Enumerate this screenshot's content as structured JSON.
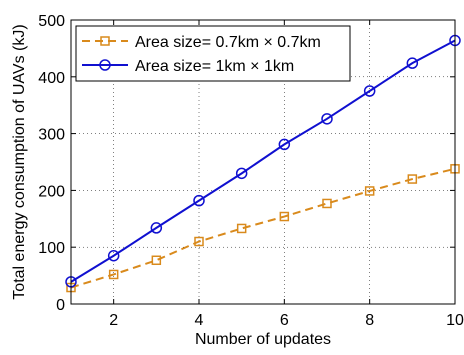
{
  "chart_data": {
    "type": "line",
    "title": "",
    "xlabel": "Number of updates",
    "ylabel": "Total energy consumption of UAVs (kJ)",
    "xlim": [
      1,
      10
    ],
    "ylim": [
      0,
      500
    ],
    "xticks": [
      2,
      4,
      6,
      8,
      10
    ],
    "yticks": [
      0,
      100,
      200,
      300,
      400,
      500
    ],
    "grid": true,
    "legend_position": "top-left",
    "x": [
      1,
      2,
      3,
      4,
      5,
      6,
      7,
      8,
      9,
      10
    ],
    "series": [
      {
        "name": "Area size= 0.7km × 0.7km",
        "values": [
          29,
          52,
          77,
          110,
          133,
          154,
          177,
          199,
          220,
          238
        ],
        "color": "#D98A1C",
        "line_style": "dashed",
        "marker": "square"
      },
      {
        "name": "Area size= 1km × 1km",
        "values": [
          39,
          85,
          134,
          182,
          230,
          281,
          326,
          375,
          424,
          464
        ],
        "color": "#1010D0",
        "line_style": "solid",
        "marker": "circle"
      }
    ]
  }
}
